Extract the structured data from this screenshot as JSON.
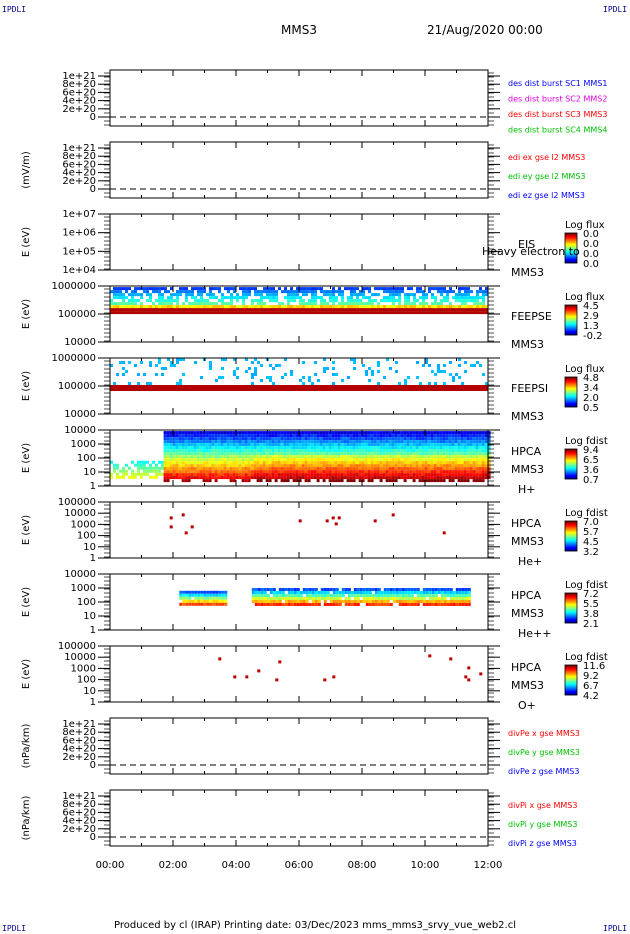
{
  "corner_labels": [
    "IPDLI",
    "IPDLI",
    "IPDLI",
    "IPDLI"
  ],
  "header": {
    "spacecraft": "MMS3",
    "date": "21/Aug/2020 00:00"
  },
  "footer": {
    "text": "Produced by cl (IRAP)   Printing date: 03/Dec/2023   mms_mms3_srvy_vue_web2.cl"
  },
  "colors": {
    "blue": "#0000ff",
    "magenta": "#e000e0",
    "red": "#ff0000",
    "green": "#00c000",
    "navy": "#00008b"
  },
  "chart_data": {
    "type": "heatmap",
    "xlim": [
      "00:00",
      "12:00"
    ],
    "x_ticks": [
      "00:00",
      "02:00",
      "04:00",
      "06:00",
      "08:00",
      "10:00",
      "12:00"
    ],
    "panels": [
      {
        "id": "des-dist",
        "kind": "line",
        "ylabel": "",
        "y_ticks": [
          "1e+21",
          "8e+20",
          "6e+20",
          "4e+20",
          "2e+20",
          "0"
        ],
        "legend": [
          {
            "text": "des dist burst SC1 MMS1",
            "color": "blue"
          },
          {
            "text": "des dist burst SC2 MMS2",
            "color": "magenta"
          },
          {
            "text": "des dist burst SC3 MMS3",
            "color": "red"
          },
          {
            "text": "des dist burst SC4 MMS4",
            "color": "green"
          }
        ]
      },
      {
        "id": "edi",
        "kind": "line",
        "ylabel": "(mV/m)",
        "y_ticks": [
          "1e+21",
          "8e+20",
          "6e+20",
          "4e+20",
          "2e+20",
          "0"
        ],
        "legend": [
          {
            "text": "edi ex gse l2 MMS3",
            "color": "red"
          },
          {
            "text": "edi ey gse l2 MMS3",
            "color": "green"
          },
          {
            "text": "edi ez gse l2 MMS3",
            "color": "blue"
          }
        ]
      },
      {
        "id": "eis",
        "kind": "spectrogram",
        "ylabel": "E (eV)",
        "y_ticks": [
          "1e+07",
          "1e+06",
          "1e+05",
          "1e+04"
        ],
        "labels": [
          "EIS",
          "Heavy electron to",
          "MMS3"
        ],
        "colorbar": {
          "title": "Log flux",
          "ticks": [
            "0.0",
            "0.0",
            "0.0",
            "0.0"
          ]
        },
        "activity": []
      },
      {
        "id": "feeps-e",
        "kind": "spectrogram",
        "ylabel": "E (eV)",
        "y_ticks": [
          "1000000",
          "100000",
          "10000"
        ],
        "labels": [
          "FEEPSE",
          "MMS3"
        ],
        "colorbar": {
          "title": "Log flux",
          "ticks": [
            "4.5",
            "2.9",
            "1.3",
            "-0.2"
          ]
        },
        "activity": [
          {
            "start": 0.0,
            "end": 12.0,
            "band": [
              0.02,
              0.45
            ],
            "mode": "feepse"
          }
        ]
      },
      {
        "id": "feeps-i",
        "kind": "spectrogram",
        "ylabel": "E (eV)",
        "y_ticks": [
          "1000000",
          "100000",
          "10000"
        ],
        "labels": [
          "FEEPSI",
          "MMS3"
        ],
        "colorbar": {
          "title": "Log flux",
          "ticks": [
            "4.8",
            "3.4",
            "2.0",
            "0.5"
          ]
        },
        "activity": [
          {
            "start": 0.0,
            "end": 12.0,
            "band": [
              0.0,
              0.55
            ],
            "mode": "feepsi"
          }
        ]
      },
      {
        "id": "hpca-h",
        "kind": "spectrogram",
        "ylabel": "E (eV)",
        "y_ticks": [
          "10000",
          "1000",
          "100",
          "10",
          "1"
        ],
        "labels": [
          "HPCA",
          "MMS3",
          "H+"
        ],
        "colorbar": {
          "title": "Log fdist",
          "ticks": [
            "9.4",
            "6.5",
            "3.6",
            "0.7"
          ]
        },
        "activity": [
          {
            "start": 0.0,
            "end": 1.7,
            "band": [
              0.55,
              0.85
            ],
            "mode": "hpca-low"
          },
          {
            "start": 1.7,
            "end": 12.0,
            "band": [
              0.02,
              0.92
            ],
            "mode": "hpca"
          }
        ]
      },
      {
        "id": "hpca-he",
        "kind": "spectrogram",
        "ylabel": "E (eV)",
        "y_ticks": [
          "100000",
          "10000",
          "1000",
          "100",
          "10",
          "1"
        ],
        "labels": [
          "HPCA",
          "MMS3",
          "He+"
        ],
        "colorbar": {
          "title": "Log fdist",
          "ticks": [
            "7.0",
            "5.7",
            "4.5",
            "3.2"
          ]
        },
        "activity": [
          {
            "start": 1.8,
            "end": 11.8,
            "band": [
              0.15,
              0.55
            ],
            "mode": "sparse"
          }
        ]
      },
      {
        "id": "hpca-hepp",
        "kind": "spectrogram",
        "ylabel": "E (eV)",
        "y_ticks": [
          "10000",
          "1000",
          "100",
          "10",
          "1"
        ],
        "labels": [
          "HPCA",
          "MMS3",
          "He++"
        ],
        "colorbar": {
          "title": "Log fdist",
          "ticks": [
            "7.2",
            "5.5",
            "3.8",
            "2.1"
          ]
        },
        "activity": [
          {
            "start": 2.2,
            "end": 3.7,
            "band": [
              0.3,
              0.55
            ],
            "mode": "patch"
          },
          {
            "start": 4.5,
            "end": 11.4,
            "band": [
              0.25,
              0.55
            ],
            "mode": "patch"
          }
        ]
      },
      {
        "id": "hpca-o",
        "kind": "spectrogram",
        "ylabel": "E (eV)",
        "y_ticks": [
          "100000",
          "10000",
          "1000",
          "100",
          "10",
          "1"
        ],
        "labels": [
          "HPCA",
          "MMS3",
          "O+"
        ],
        "colorbar": {
          "title": "Log fdist",
          "ticks": [
            "11.6",
            "9.2",
            "6.7",
            "4.2"
          ]
        },
        "activity": [
          {
            "start": 2.2,
            "end": 11.9,
            "band": [
              0.15,
              0.6
            ],
            "mode": "sparse"
          }
        ]
      },
      {
        "id": "divpe",
        "kind": "line",
        "ylabel": "(nPa/km)",
        "y_ticks": [
          "1e+21",
          "8e+20",
          "6e+20",
          "4e+20",
          "2e+20",
          "0"
        ],
        "legend": [
          {
            "text": "divPe x gse MMS3",
            "color": "red"
          },
          {
            "text": "divPe y gse MMS3",
            "color": "green"
          },
          {
            "text": "divPe z gse MMS3",
            "color": "blue"
          }
        ]
      },
      {
        "id": "divpi",
        "kind": "line",
        "ylabel": "(nPa/km)",
        "y_ticks": [
          "1e+21",
          "8e+20",
          "6e+20",
          "4e+20",
          "2e+20",
          "0"
        ],
        "legend": [
          {
            "text": "divPi x gse MMS3",
            "color": "red"
          },
          {
            "text": "divPi y gse MMS3",
            "color": "green"
          },
          {
            "text": "divPi z gse MMS3",
            "color": "blue"
          }
        ]
      }
    ]
  }
}
